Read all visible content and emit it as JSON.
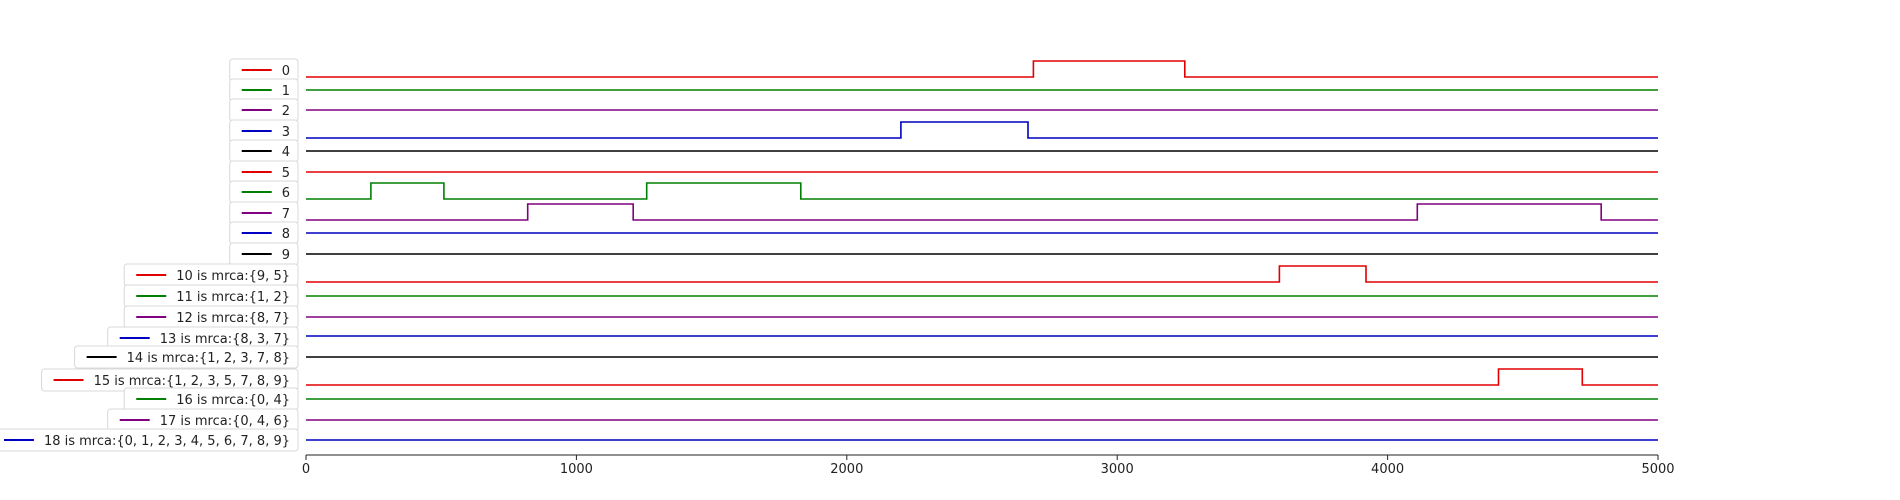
{
  "chart_data": {
    "type": "line",
    "xlim": [
      0,
      5000
    ],
    "x_ticks": [
      "0",
      "1000",
      "2000",
      "3000",
      "4000",
      "5000"
    ],
    "grid": false,
    "legend_placement": "left of each track",
    "series": [
      {
        "name": "0",
        "color": "#e00000",
        "steps": [
          [
            2690,
            3250
          ]
        ]
      },
      {
        "name": "1",
        "color": "#008000",
        "steps": []
      },
      {
        "name": "2",
        "color": "#800080",
        "steps": []
      },
      {
        "name": "3",
        "color": "#0000c0",
        "steps": [
          [
            2200,
            2670
          ]
        ]
      },
      {
        "name": "4",
        "color": "#000000",
        "steps": []
      },
      {
        "name": "5",
        "color": "#e00000",
        "steps": []
      },
      {
        "name": "6",
        "color": "#008000",
        "steps": [
          [
            240,
            510
          ],
          [
            1260,
            1830
          ]
        ]
      },
      {
        "name": "7",
        "color": "#800080",
        "steps": [
          [
            820,
            1210
          ],
          [
            4110,
            4790
          ]
        ]
      },
      {
        "name": "8",
        "color": "#0000c0",
        "steps": []
      },
      {
        "name": "9",
        "color": "#000000",
        "steps": []
      },
      {
        "name": "10 is mrca:{9, 5}",
        "color": "#e00000",
        "steps": [
          [
            3600,
            3920
          ]
        ]
      },
      {
        "name": "11 is mrca:{1, 2}",
        "color": "#008000",
        "steps": []
      },
      {
        "name": "12 is mrca:{8, 7}",
        "color": "#800080",
        "steps": []
      },
      {
        "name": "13 is mrca:{8, 3, 7}",
        "color": "#0000c0",
        "steps": []
      },
      {
        "name": "14 is mrca:{1, 2, 3, 7, 8}",
        "color": "#000000",
        "steps": []
      },
      {
        "name": "15 is mrca:{1, 2, 3, 5, 7, 8, 9}",
        "color": "#e00000",
        "steps": [
          [
            4410,
            4720
          ]
        ]
      },
      {
        "name": "16 is mrca:{0, 4}",
        "color": "#008000",
        "steps": []
      },
      {
        "name": "17 is mrca:{0, 4, 6}",
        "color": "#800080",
        "steps": []
      },
      {
        "name": "18 is mrca:{0, 1, 2, 3, 4, 5, 6, 7, 8, 9}",
        "color": "#0000c0",
        "steps": []
      }
    ]
  }
}
